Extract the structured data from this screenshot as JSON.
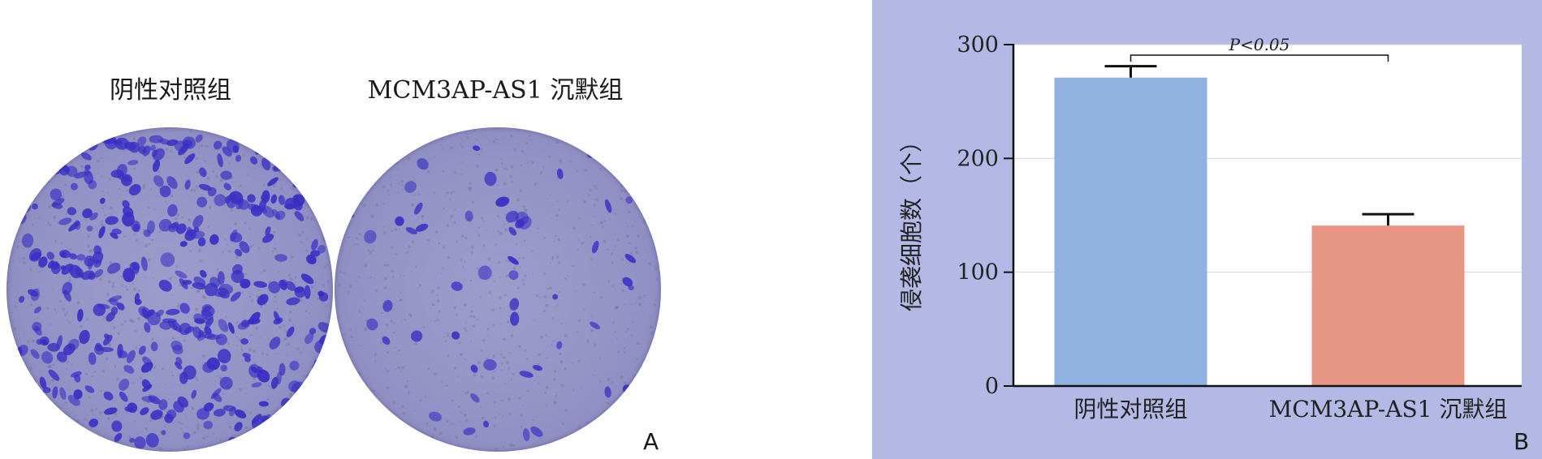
{
  "panel_a": {
    "letter": "A",
    "images": [
      {
        "label": "阴性对照组"
      },
      {
        "label": "MCM3AP-AS1 沉默组"
      }
    ],
    "stain_color": "#3a2fc4"
  },
  "panel_b": {
    "letter": "B",
    "background_color": "#b3b9e4"
  },
  "chart_data": {
    "type": "bar",
    "categories": [
      "阴性对照组",
      "MCM3AP-AS1 沉默组"
    ],
    "values": [
      271,
      141
    ],
    "errors": [
      10,
      10
    ],
    "colors": [
      "#8fb2e0",
      "#e89684"
    ],
    "ylabel": "侵袭细胞数（个）",
    "ylim": [
      0,
      300
    ],
    "yticks": [
      0,
      100,
      200,
      300
    ],
    "grid": "horizontal",
    "annotation": {
      "text": "P<0.05",
      "between": [
        0,
        1
      ]
    }
  }
}
